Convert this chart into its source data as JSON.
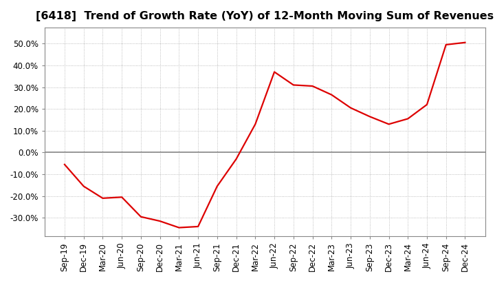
{
  "title": "[6418]  Trend of Growth Rate (YoY) of 12-Month Moving Sum of Revenues",
  "x_labels": [
    "Sep-19",
    "Dec-19",
    "Mar-20",
    "Jun-20",
    "Sep-20",
    "Dec-20",
    "Mar-21",
    "Jun-21",
    "Sep-21",
    "Dec-21",
    "Mar-22",
    "Jun-22",
    "Sep-22",
    "Dec-22",
    "Mar-23",
    "Jun-23",
    "Sep-23",
    "Dec-23",
    "Mar-24",
    "Jun-24",
    "Sep-24",
    "Dec-24"
  ],
  "y_values": [
    -0.055,
    -0.155,
    -0.21,
    -0.205,
    -0.295,
    -0.315,
    -0.345,
    -0.34,
    -0.155,
    -0.03,
    0.13,
    0.37,
    0.31,
    0.305,
    0.265,
    0.205,
    0.165,
    0.13,
    0.155,
    0.22,
    0.495,
    0.505
  ],
  "line_color": "#dd0000",
  "line_width": 1.6,
  "ylim": [
    -0.385,
    0.575
  ],
  "yticks": [
    -0.3,
    -0.2,
    -0.1,
    0.0,
    0.1,
    0.2,
    0.3,
    0.4,
    0.5
  ],
  "background_color": "#ffffff",
  "grid_color": "#aaaaaa",
  "zero_line_color": "#888888",
  "title_fontsize": 11.5,
  "tick_fontsize": 8.5,
  "spine_color": "#888888"
}
